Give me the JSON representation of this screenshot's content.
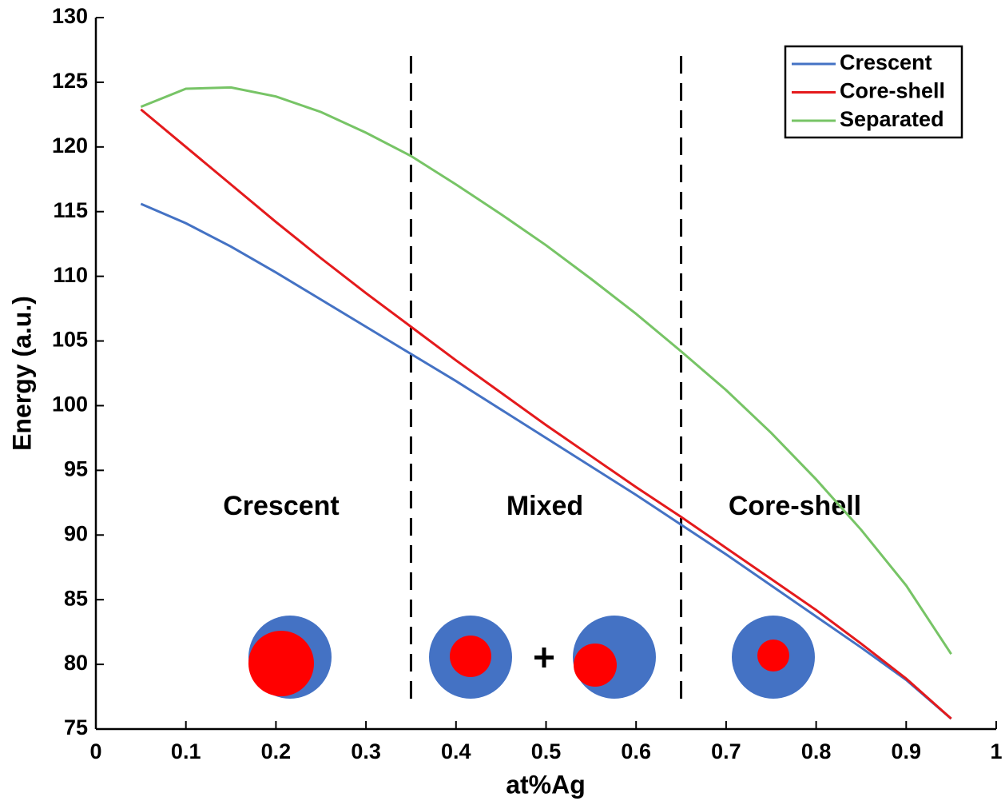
{
  "chart_data": {
    "type": "line",
    "xlabel": "at%Ag",
    "ylabel": "Energy (a.u.)",
    "x": [
      0.05,
      0.1,
      0.15,
      0.2,
      0.25,
      0.3,
      0.35,
      0.4,
      0.45,
      0.5,
      0.55,
      0.6,
      0.65,
      0.7,
      0.75,
      0.8,
      0.85,
      0.9,
      0.95
    ],
    "series": [
      {
        "name": "Crescent",
        "color": "#4472c4",
        "values": [
          115.6,
          114.1,
          112.3,
          110.3,
          108.2,
          106.1,
          104.0,
          101.9,
          99.7,
          97.5,
          95.3,
          93.1,
          90.8,
          88.5,
          86.1,
          83.7,
          81.3,
          78.8,
          75.8
        ]
      },
      {
        "name": "Core-shell",
        "color": "#e41a1c",
        "values": [
          122.9,
          120.0,
          117.1,
          114.2,
          111.4,
          108.7,
          106.1,
          103.5,
          101.0,
          98.5,
          96.1,
          93.7,
          91.4,
          89.0,
          86.6,
          84.2,
          81.6,
          78.9,
          75.8
        ]
      },
      {
        "name": "Separated",
        "color": "#77c466",
        "values": [
          123.1,
          124.5,
          124.6,
          123.9,
          122.7,
          121.1,
          119.3,
          117.1,
          114.8,
          112.4,
          109.8,
          107.1,
          104.2,
          101.2,
          97.9,
          94.3,
          90.4,
          86.1,
          80.8
        ]
      }
    ],
    "xlim": [
      0,
      1
    ],
    "xticks": [
      0,
      0.1,
      0.2,
      0.3,
      0.4,
      0.5,
      0.6,
      0.7,
      0.8,
      0.9,
      1
    ],
    "ylim": [
      75,
      130
    ],
    "yticks": [
      75,
      80,
      85,
      90,
      95,
      100,
      105,
      110,
      115,
      120,
      125,
      130
    ],
    "grid": false,
    "legend": "upper right",
    "dividers": [
      0.35,
      0.65
    ],
    "region_labels": [
      "Crescent",
      "Mixed",
      "Core-shell"
    ]
  }
}
